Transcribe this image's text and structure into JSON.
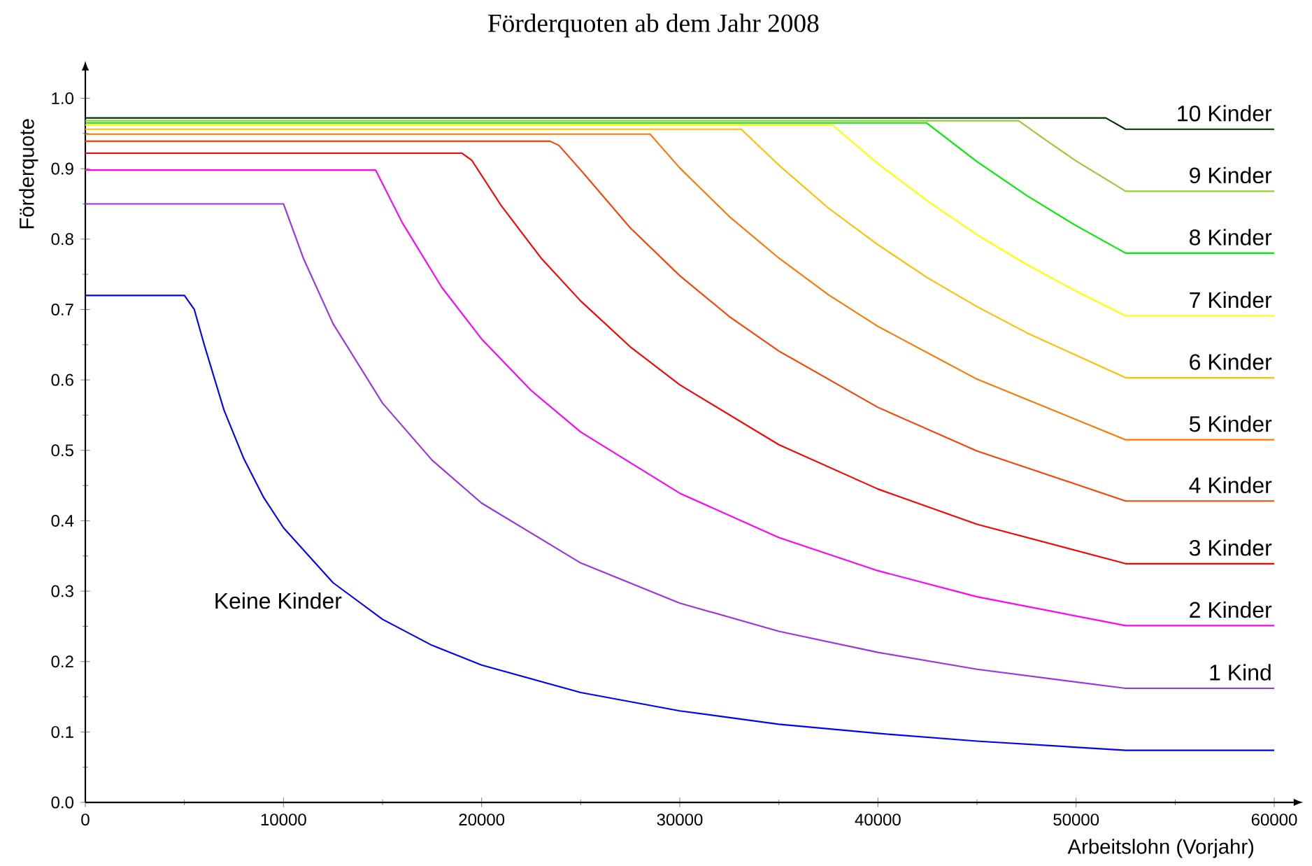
{
  "chart_data": {
    "type": "line",
    "title": "Förderquoten ab dem Jahr 2008",
    "xlabel": "Arbeitslohn (Vorjahr)",
    "ylabel": "Förderquote",
    "xlim": [
      0,
      61000
    ],
    "ylim": [
      0,
      1.04
    ],
    "xticks": [
      0,
      10000,
      20000,
      30000,
      40000,
      50000,
      60000
    ],
    "yticks": [
      {
        "value": 0,
        "label": "0.0"
      },
      0.1,
      0.2,
      0.3,
      0.4,
      0.5,
      0.6,
      0.7,
      0.8,
      0.9,
      {
        "value": 1,
        "label": "1.0"
      }
    ],
    "series": [
      {
        "name": "Keine Kinder",
        "color": "#0000ff",
        "x": [
          0,
          5000,
          5500,
          6000,
          7000,
          8000,
          9000,
          10000,
          12500,
          15000,
          17500,
          20000,
          25000,
          30000,
          35000,
          40000,
          45000,
          52500,
          60000
        ],
        "values": [
          0.72,
          0.72,
          0.7,
          0.65,
          0.557,
          0.488,
          0.433,
          0.39,
          0.312,
          0.26,
          0.223,
          0.195,
          0.156,
          0.13,
          0.111,
          0.098,
          0.087,
          0.074,
          0.074
        ]
      },
      {
        "name": "1 Kind",
        "color": "#9933e6",
        "x": [
          0,
          10000,
          11000,
          12500,
          15000,
          17500,
          20000,
          25000,
          30000,
          35000,
          40000,
          45000,
          52500,
          60000
        ],
        "values": [
          0.85,
          0.85,
          0.773,
          0.68,
          0.567,
          0.486,
          0.425,
          0.34,
          0.283,
          0.243,
          0.213,
          0.189,
          0.162,
          0.162
        ]
      },
      {
        "name": "2 Kinder",
        "color": "#ff00ff",
        "x": [
          0,
          14650,
          16000,
          18000,
          20000,
          22500,
          25000,
          30000,
          35000,
          40000,
          45000,
          52500,
          60000
        ],
        "values": [
          0.898,
          0.898,
          0.823,
          0.731,
          0.658,
          0.585,
          0.526,
          0.439,
          0.376,
          0.329,
          0.292,
          0.251,
          0.251
        ]
      },
      {
        "name": "3 Kinder",
        "color": "#ff0000",
        "x": [
          0,
          19000,
          19500,
          21000,
          23000,
          25000,
          27500,
          30000,
          35000,
          40000,
          45000,
          52500,
          60000
        ],
        "values": [
          0.922,
          0.922,
          0.912,
          0.847,
          0.773,
          0.712,
          0.647,
          0.593,
          0.508,
          0.445,
          0.395,
          0.339,
          0.339
        ]
      },
      {
        "name": "4 Kinder",
        "color": "#ff4000",
        "x": [
          0,
          23450,
          23900,
          25000,
          27500,
          30000,
          32500,
          35000,
          40000,
          45000,
          52500,
          60000
        ],
        "values": [
          0.939,
          0.939,
          0.933,
          0.898,
          0.816,
          0.748,
          0.69,
          0.641,
          0.561,
          0.499,
          0.428,
          0.428
        ]
      },
      {
        "name": "5 Kinder",
        "color": "#ff7700",
        "x": [
          0,
          28500,
          30000,
          32500,
          35000,
          37500,
          40000,
          45000,
          52500,
          60000
        ],
        "values": [
          0.949,
          0.949,
          0.901,
          0.832,
          0.773,
          0.721,
          0.676,
          0.601,
          0.515,
          0.515
        ]
      },
      {
        "name": "6 Kinder",
        "color": "#ffbf00",
        "x": [
          0,
          33100,
          35000,
          37500,
          40000,
          42500,
          45000,
          47500,
          52500,
          60000
        ],
        "values": [
          0.956,
          0.956,
          0.905,
          0.844,
          0.792,
          0.745,
          0.704,
          0.667,
          0.603,
          0.603
        ]
      },
      {
        "name": "7 Kinder",
        "color": "#ffff00",
        "x": [
          0,
          37700,
          40000,
          42500,
          45000,
          47500,
          50000,
          52500,
          60000
        ],
        "values": [
          0.962,
          0.962,
          0.907,
          0.854,
          0.806,
          0.764,
          0.726,
          0.691,
          0.691
        ]
      },
      {
        "name": "8 Kinder",
        "color": "#00ee00",
        "x": [
          0,
          42450,
          45000,
          47500,
          50000,
          52500,
          60000
        ],
        "values": [
          0.965,
          0.965,
          0.91,
          0.862,
          0.819,
          0.78,
          0.78
        ]
      },
      {
        "name": "9 Kinder",
        "color": "#99cc33",
        "x": [
          0,
          47100,
          48500,
          50000,
          52500,
          60000
        ],
        "values": [
          0.968,
          0.968,
          0.94,
          0.911,
          0.868,
          0.868
        ]
      },
      {
        "name": "10 Kinder",
        "color": "#003300",
        "x": [
          0,
          51500,
          52500,
          60000
        ],
        "values": [
          0.972,
          0.972,
          0.956,
          0.956
        ]
      }
    ]
  }
}
